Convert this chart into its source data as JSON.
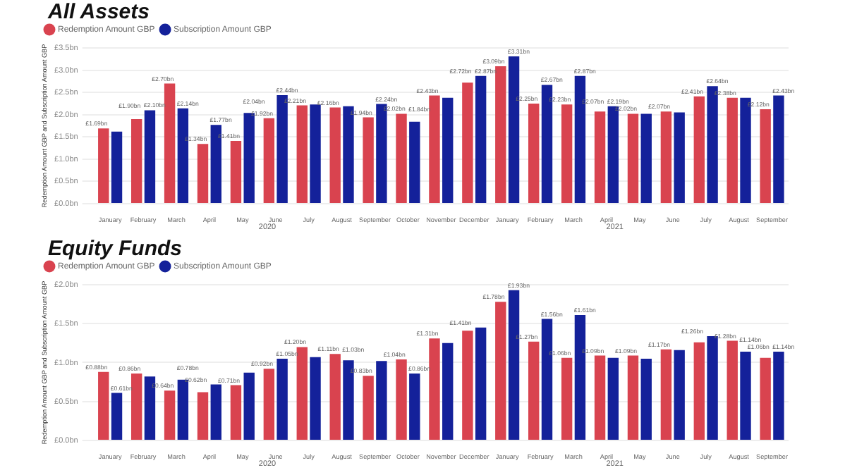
{
  "chart_data": [
    {
      "type": "bar",
      "title": "All Assets",
      "ylabel": "Redemption Amount GBP and Subscription Amount GBP",
      "categories": [
        "January",
        "February",
        "March",
        "April",
        "May",
        "June",
        "July",
        "August",
        "September",
        "October",
        "November",
        "December",
        "January",
        "February",
        "March",
        "April",
        "May",
        "June",
        "July",
        "August",
        "September"
      ],
      "ylim": [
        0,
        3.5
      ],
      "yticks": [
        {
          "value": 0,
          "label": "£0.0bn"
        },
        {
          "value": 0.5,
          "label": "£0.5bn"
        },
        {
          "value": 1,
          "label": "£1.0bn"
        },
        {
          "value": 1.5,
          "label": "£1.5bn"
        },
        {
          "value": 2,
          "label": "£2.0bn"
        },
        {
          "value": 2.5,
          "label": "£2.5bn"
        },
        {
          "value": 3,
          "label": "£3.0bn"
        },
        {
          "value": 3.5,
          "label": "£3.5bn"
        }
      ],
      "grid": "y",
      "legend": "top left",
      "marker": "circle",
      "annotations": [
        "2020",
        "2021"
      ],
      "series": [
        {
          "name": "Redemption Amount GBP",
          "color": "#d9434f",
          "values": [
            1.69,
            1.9,
            2.7,
            1.34,
            1.41,
            1.92,
            2.21,
            2.16,
            1.94,
            2.02,
            2.43,
            2.72,
            3.09,
            2.25,
            2.23,
            2.07,
            2.02,
            2.07,
            2.41,
            2.38,
            2.12
          ],
          "value_labels": [
            "£1.69bn",
            "£1.90bn",
            "£2.70bn",
            "£1.34bn",
            "£1.41bn",
            "£1.92bn",
            "£2.21bn",
            "£2.16bn",
            "£1.94bn",
            "£2.02bn",
            "£2.43bn",
            "£2.72bn",
            "£3.09bn",
            "£2.25bn",
            "£2.23bn",
            "£2.07bn",
            "£2.02bn",
            "£2.07bn",
            "£2.41bn",
            "£2.38bn",
            "£2.12bn"
          ]
        },
        {
          "name": "Subscription Amount GBP",
          "color": "#14219a",
          "values": [
            1.62,
            2.1,
            2.14,
            1.77,
            2.04,
            2.44,
            2.23,
            2.19,
            2.24,
            1.84,
            2.38,
            2.87,
            3.31,
            2.67,
            2.87,
            2.19,
            2.02,
            2.05,
            2.64,
            2.38,
            2.43
          ],
          "value_labels": [
            null,
            "£2.10bn",
            "£2.14bn",
            "£1.77bn",
            "£2.04bn",
            "£2.44bn",
            null,
            null,
            "£2.24bn",
            "£1.84bn",
            null,
            "£2.87bn",
            "£3.31bn",
            "£2.67bn",
            "£2.87bn",
            "£2.19bn",
            null,
            null,
            "£2.64bn",
            null,
            "£2.43bn"
          ]
        }
      ]
    },
    {
      "type": "bar",
      "title": "Equity Funds",
      "ylabel": "Redemption Amount GBP and Subscription Amount GBP",
      "categories": [
        "January",
        "February",
        "March",
        "April",
        "May",
        "June",
        "July",
        "August",
        "September",
        "October",
        "November",
        "December",
        "January",
        "February",
        "March",
        "April",
        "May",
        "June",
        "July",
        "August",
        "September"
      ],
      "ylim": [
        0,
        2
      ],
      "yticks": [
        {
          "value": 0,
          "label": "£0.0bn"
        },
        {
          "value": 0.5,
          "label": "£0.5bn"
        },
        {
          "value": 1,
          "label": "£1.0bn"
        },
        {
          "value": 1.5,
          "label": "£1.5bn"
        },
        {
          "value": 2,
          "label": "£2.0bn"
        }
      ],
      "grid": "y",
      "legend": "top left",
      "marker": "circle",
      "annotations": [
        "2020",
        "2021"
      ],
      "series": [
        {
          "name": "Redemption Amount GBP",
          "color": "#d9434f",
          "values": [
            0.88,
            0.86,
            0.64,
            0.62,
            0.71,
            0.92,
            1.2,
            1.11,
            0.83,
            1.04,
            1.31,
            1.41,
            1.78,
            1.27,
            1.06,
            1.09,
            1.09,
            1.17,
            1.26,
            1.28,
            1.06
          ],
          "value_labels": [
            "£0.88bn",
            "£0.86bn",
            "£0.64bn",
            "£0.62bn",
            "£0.71bn",
            "£0.92bn",
            "£1.20bn",
            "£1.11bn",
            "£0.83bn",
            "£1.04bn",
            "£1.31bn",
            "£1.41bn",
            "£1.78bn",
            "£1.27bn",
            "£1.06bn",
            "£1.09bn",
            "£1.09bn",
            "£1.17bn",
            "£1.26bn",
            "£1.28bn",
            "£1.06bn"
          ]
        },
        {
          "name": "Subscription Amount GBP",
          "color": "#14219a",
          "values": [
            0.61,
            0.82,
            0.78,
            0.72,
            0.87,
            1.05,
            1.07,
            1.03,
            1.02,
            0.86,
            1.25,
            1.45,
            1.93,
            1.56,
            1.61,
            1.06,
            1.05,
            1.16,
            1.34,
            1.14,
            1.14
          ],
          "value_labels": [
            "£0.61bn",
            null,
            "£0.78bn",
            null,
            null,
            "£1.05bn",
            null,
            "£1.03bn",
            null,
            "£0.86bn",
            null,
            null,
            "£1.93bn",
            "£1.56bn",
            "£1.61bn",
            null,
            null,
            null,
            null,
            "£1.14bn",
            "£1.14bn"
          ]
        }
      ]
    }
  ]
}
